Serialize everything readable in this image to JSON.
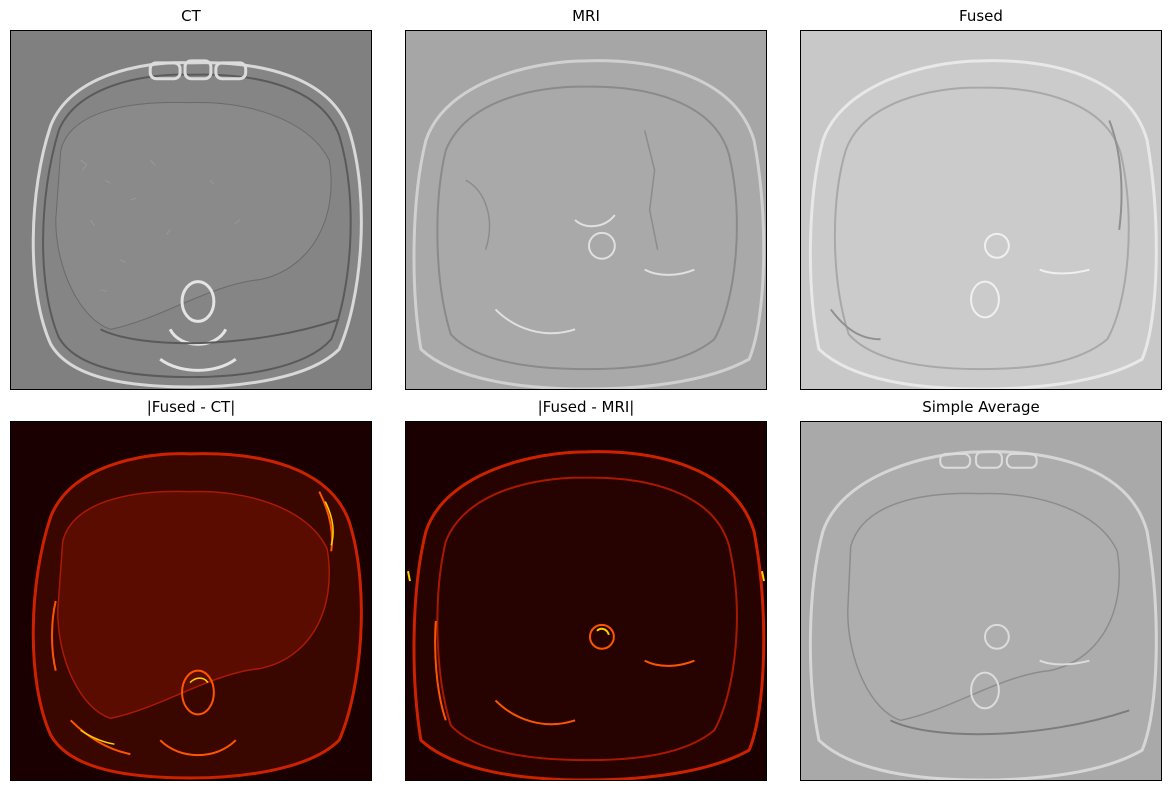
{
  "figure": {
    "panels": [
      {
        "title": "CT",
        "rendering": "ct-embossed"
      },
      {
        "title": "MRI",
        "rendering": "mri-embossed"
      },
      {
        "title": "Fused",
        "rendering": "fused-embossed"
      },
      {
        "title": "|Fused - CT|",
        "rendering": "heat-diff-ct"
      },
      {
        "title": "|Fused - MRI|",
        "rendering": "heat-diff-mri"
      },
      {
        "title": "Simple Average",
        "rendering": "average-embossed"
      }
    ],
    "colors": {
      "ct_background": "#808080",
      "mri_background": "#a6a6a6",
      "fused_background": "#c8c8c8",
      "average_background": "#a9a9a9",
      "heat_background": "#1a0000",
      "heat_mid": "#cc2200",
      "heat_high": "#ffd000"
    }
  }
}
